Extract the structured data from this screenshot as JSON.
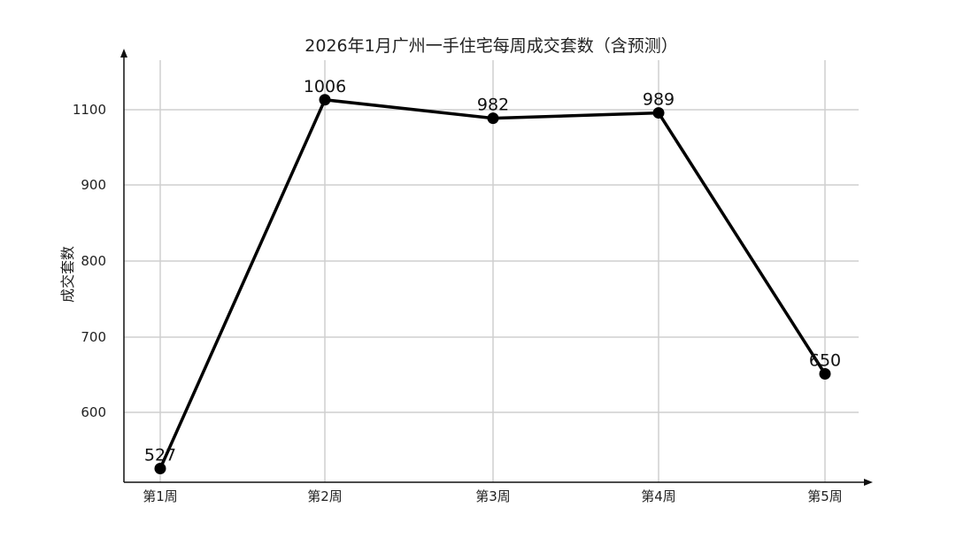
{
  "chart_data": {
    "type": "line",
    "title": "2026年1月广州一手住宅每周成交套数（含预测）",
    "xlabel": "",
    "ylabel": "成交套数",
    "categories": [
      "第1周",
      "第2周",
      "第3周",
      "第4周",
      "第5周"
    ],
    "series": [
      {
        "values": [
          527,
          1006,
          982,
          989,
          650
        ],
        "color": "#000000"
      }
    ],
    "data_labels": [
      "527",
      "1006",
      "982",
      "989",
      "650"
    ],
    "y_tick_labels": [
      "1100",
      "900",
      "800",
      "700",
      "600"
    ],
    "grid": true,
    "legend": "none"
  }
}
